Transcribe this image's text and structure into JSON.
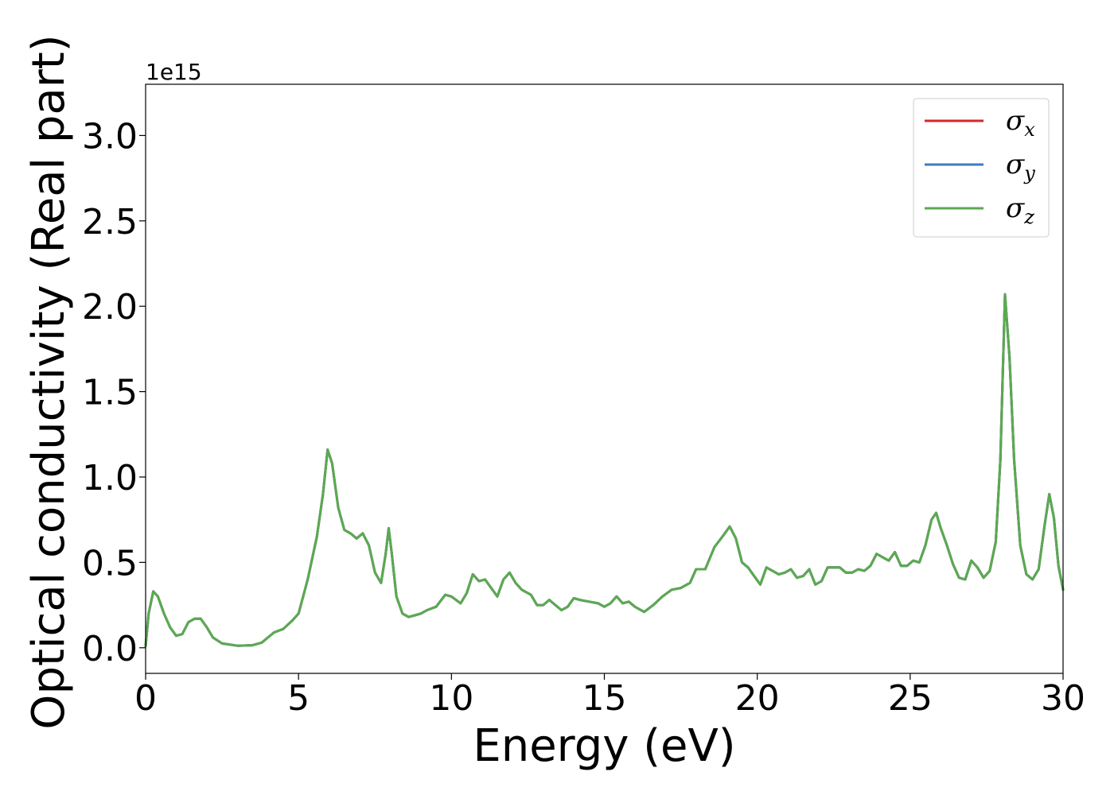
{
  "chart_data": {
    "type": "line",
    "title": "",
    "xlabel": "Energy (eV)",
    "ylabel": "Optical conductivity (Real part)",
    "y_offset_text": "1e15",
    "xlim": [
      0,
      30
    ],
    "ylim": [
      -0.15,
      3.3
    ],
    "xticks": [
      0,
      5,
      10,
      15,
      20,
      25,
      30
    ],
    "xtick_labels": [
      "0",
      "5",
      "10",
      "15",
      "20",
      "25",
      "30"
    ],
    "yticks": [
      0.0,
      0.5,
      1.0,
      1.5,
      2.0,
      2.5,
      3.0
    ],
    "ytick_labels": [
      "0.0",
      "0.5",
      "1.0",
      "1.5",
      "2.0",
      "2.5",
      "3.0"
    ],
    "grid": false,
    "legend": {
      "placement": "top-right"
    },
    "x": [
      0,
      0.1,
      0.25,
      0.4,
      0.6,
      0.8,
      1.0,
      1.2,
      1.4,
      1.6,
      1.8,
      2.0,
      2.2,
      2.5,
      3.0,
      3.5,
      3.8,
      4.0,
      4.2,
      4.5,
      4.8,
      5.0,
      5.3,
      5.6,
      5.8,
      5.95,
      6.1,
      6.3,
      6.5,
      6.7,
      6.9,
      7.1,
      7.3,
      7.5,
      7.7,
      7.85,
      7.95,
      8.05,
      8.2,
      8.4,
      8.6,
      8.8,
      9.0,
      9.2,
      9.5,
      9.8,
      10.0,
      10.3,
      10.5,
      10.7,
      10.9,
      11.1,
      11.3,
      11.5,
      11.7,
      11.9,
      12.1,
      12.3,
      12.6,
      12.8,
      13.0,
      13.2,
      13.4,
      13.6,
      13.8,
      14.0,
      14.2,
      14.5,
      14.8,
      15.0,
      15.2,
      15.4,
      15.6,
      15.8,
      16.0,
      16.3,
      16.6,
      16.9,
      17.2,
      17.5,
      17.8,
      18.0,
      18.3,
      18.6,
      18.9,
      19.1,
      19.3,
      19.5,
      19.7,
      19.9,
      20.1,
      20.3,
      20.5,
      20.7,
      20.9,
      21.1,
      21.3,
      21.5,
      21.7,
      21.9,
      22.1,
      22.3,
      22.5,
      22.7,
      22.9,
      23.1,
      23.3,
      23.5,
      23.7,
      23.9,
      24.1,
      24.3,
      24.5,
      24.7,
      24.9,
      25.1,
      25.3,
      25.5,
      25.7,
      25.85,
      26.0,
      26.2,
      26.4,
      26.6,
      26.8,
      27.0,
      27.2,
      27.4,
      27.6,
      27.8,
      27.95,
      28.1,
      28.25,
      28.4,
      28.6,
      28.8,
      29.0,
      29.2,
      29.4,
      29.55,
      29.7,
      29.85,
      30.0
    ],
    "series": [
      {
        "name": "σx",
        "color": "#d62728",
        "values": [
          0.01,
          0.2,
          0.33,
          0.3,
          0.2,
          0.12,
          0.07,
          0.08,
          0.15,
          0.17,
          0.17,
          0.12,
          0.06,
          0.025,
          0.012,
          0.015,
          0.03,
          0.06,
          0.09,
          0.11,
          0.16,
          0.2,
          0.4,
          0.65,
          0.9,
          1.16,
          1.08,
          0.82,
          0.69,
          0.67,
          0.64,
          0.67,
          0.6,
          0.44,
          0.38,
          0.55,
          0.7,
          0.55,
          0.3,
          0.2,
          0.18,
          0.19,
          0.2,
          0.22,
          0.24,
          0.31,
          0.3,
          0.26,
          0.32,
          0.43,
          0.39,
          0.4,
          0.35,
          0.3,
          0.4,
          0.44,
          0.38,
          0.34,
          0.31,
          0.25,
          0.25,
          0.28,
          0.25,
          0.22,
          0.24,
          0.29,
          0.28,
          0.27,
          0.26,
          0.24,
          0.26,
          0.3,
          0.26,
          0.27,
          0.24,
          0.21,
          0.25,
          0.3,
          0.34,
          0.35,
          0.38,
          0.46,
          0.46,
          0.59,
          0.66,
          0.71,
          0.64,
          0.5,
          0.47,
          0.42,
          0.37,
          0.47,
          0.45,
          0.43,
          0.44,
          0.46,
          0.41,
          0.42,
          0.46,
          0.37,
          0.39,
          0.47,
          0.47,
          0.47,
          0.44,
          0.44,
          0.46,
          0.45,
          0.48,
          0.55,
          0.53,
          0.51,
          0.56,
          0.48,
          0.48,
          0.51,
          0.5,
          0.6,
          0.75,
          0.79,
          0.7,
          0.6,
          0.49,
          0.41,
          0.4,
          0.51,
          0.47,
          0.41,
          0.45,
          0.62,
          1.1,
          2.07,
          1.7,
          1.1,
          0.6,
          0.43,
          0.4,
          0.46,
          0.72,
          0.9,
          0.76,
          0.48,
          0.34
        ]
      },
      {
        "name": "σy",
        "color": "#3b7dc2",
        "values": [
          0.01,
          0.2,
          0.33,
          0.3,
          0.2,
          0.12,
          0.07,
          0.08,
          0.15,
          0.17,
          0.17,
          0.12,
          0.06,
          0.025,
          0.012,
          0.015,
          0.03,
          0.06,
          0.09,
          0.11,
          0.16,
          0.2,
          0.4,
          0.65,
          0.9,
          1.16,
          1.08,
          0.82,
          0.69,
          0.67,
          0.64,
          0.67,
          0.6,
          0.44,
          0.38,
          0.55,
          0.7,
          0.55,
          0.3,
          0.2,
          0.18,
          0.19,
          0.2,
          0.22,
          0.24,
          0.31,
          0.3,
          0.26,
          0.32,
          0.43,
          0.39,
          0.4,
          0.35,
          0.3,
          0.4,
          0.44,
          0.38,
          0.34,
          0.31,
          0.25,
          0.25,
          0.28,
          0.25,
          0.22,
          0.24,
          0.29,
          0.28,
          0.27,
          0.26,
          0.24,
          0.26,
          0.3,
          0.26,
          0.27,
          0.24,
          0.21,
          0.25,
          0.3,
          0.34,
          0.35,
          0.38,
          0.46,
          0.46,
          0.59,
          0.66,
          0.71,
          0.64,
          0.5,
          0.47,
          0.42,
          0.37,
          0.47,
          0.45,
          0.43,
          0.44,
          0.46,
          0.41,
          0.42,
          0.46,
          0.37,
          0.39,
          0.47,
          0.47,
          0.47,
          0.44,
          0.44,
          0.46,
          0.45,
          0.48,
          0.55,
          0.53,
          0.51,
          0.56,
          0.48,
          0.48,
          0.51,
          0.5,
          0.6,
          0.75,
          0.79,
          0.7,
          0.6,
          0.49,
          0.41,
          0.4,
          0.51,
          0.47,
          0.41,
          0.45,
          0.62,
          1.1,
          2.07,
          1.7,
          1.1,
          0.6,
          0.43,
          0.4,
          0.46,
          0.72,
          0.9,
          0.76,
          0.48,
          0.34
        ]
      },
      {
        "name": "σz",
        "color": "#5aaa50",
        "values": [
          0.01,
          0.2,
          0.33,
          0.3,
          0.2,
          0.12,
          0.07,
          0.08,
          0.15,
          0.17,
          0.17,
          0.12,
          0.06,
          0.025,
          0.012,
          0.015,
          0.03,
          0.06,
          0.09,
          0.11,
          0.16,
          0.2,
          0.4,
          0.65,
          0.9,
          1.16,
          1.08,
          0.82,
          0.69,
          0.67,
          0.64,
          0.67,
          0.6,
          0.44,
          0.38,
          0.55,
          0.7,
          0.55,
          0.3,
          0.2,
          0.18,
          0.19,
          0.2,
          0.22,
          0.24,
          0.31,
          0.3,
          0.26,
          0.32,
          0.43,
          0.39,
          0.4,
          0.35,
          0.3,
          0.4,
          0.44,
          0.38,
          0.34,
          0.31,
          0.25,
          0.25,
          0.28,
          0.25,
          0.22,
          0.24,
          0.29,
          0.28,
          0.27,
          0.26,
          0.24,
          0.26,
          0.3,
          0.26,
          0.27,
          0.24,
          0.21,
          0.25,
          0.3,
          0.34,
          0.35,
          0.38,
          0.46,
          0.46,
          0.59,
          0.66,
          0.71,
          0.64,
          0.5,
          0.47,
          0.42,
          0.37,
          0.47,
          0.45,
          0.43,
          0.44,
          0.46,
          0.41,
          0.42,
          0.46,
          0.37,
          0.39,
          0.47,
          0.47,
          0.47,
          0.44,
          0.44,
          0.46,
          0.45,
          0.48,
          0.55,
          0.53,
          0.51,
          0.56,
          0.48,
          0.48,
          0.51,
          0.5,
          0.6,
          0.75,
          0.79,
          0.7,
          0.6,
          0.49,
          0.41,
          0.4,
          0.51,
          0.47,
          0.41,
          0.45,
          0.62,
          1.1,
          2.07,
          1.7,
          1.1,
          0.6,
          0.43,
          0.4,
          0.46,
          0.72,
          0.9,
          0.76,
          0.48,
          0.34
        ]
      }
    ],
    "legend_entries": [
      {
        "symbol": "σ",
        "subscript": "x",
        "color": "#d62728"
      },
      {
        "symbol": "σ",
        "subscript": "y",
        "color": "#3b7dc2"
      },
      {
        "symbol": "σ",
        "subscript": "z",
        "color": "#5aaa50"
      }
    ]
  }
}
